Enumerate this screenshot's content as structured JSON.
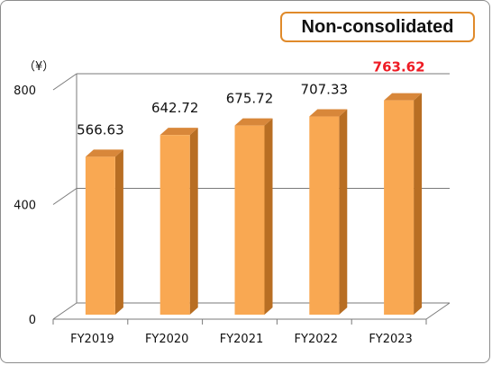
{
  "badge_label": "Non-consolidated",
  "chart_data": {
    "type": "bar",
    "unit_label": "（¥）",
    "categories": [
      "FY2019",
      "FY2020",
      "FY2021",
      "FY2022",
      "FY2023"
    ],
    "values": [
      566.63,
      642.72,
      675.72,
      707.33,
      763.62
    ],
    "value_labels": [
      "566.63",
      "642.72",
      "675.72",
      "707.33",
      "763.62"
    ],
    "highlight_index": 4,
    "ylim": [
      0,
      800
    ],
    "yticks": [
      0,
      400,
      800
    ],
    "grid": true,
    "colors": {
      "bar_front": "#f9a852",
      "bar_side": "#b86e23",
      "bar_top": "#d8873a",
      "highlight_label": "#ee1c25",
      "badge_border": "#e08a2a"
    }
  }
}
